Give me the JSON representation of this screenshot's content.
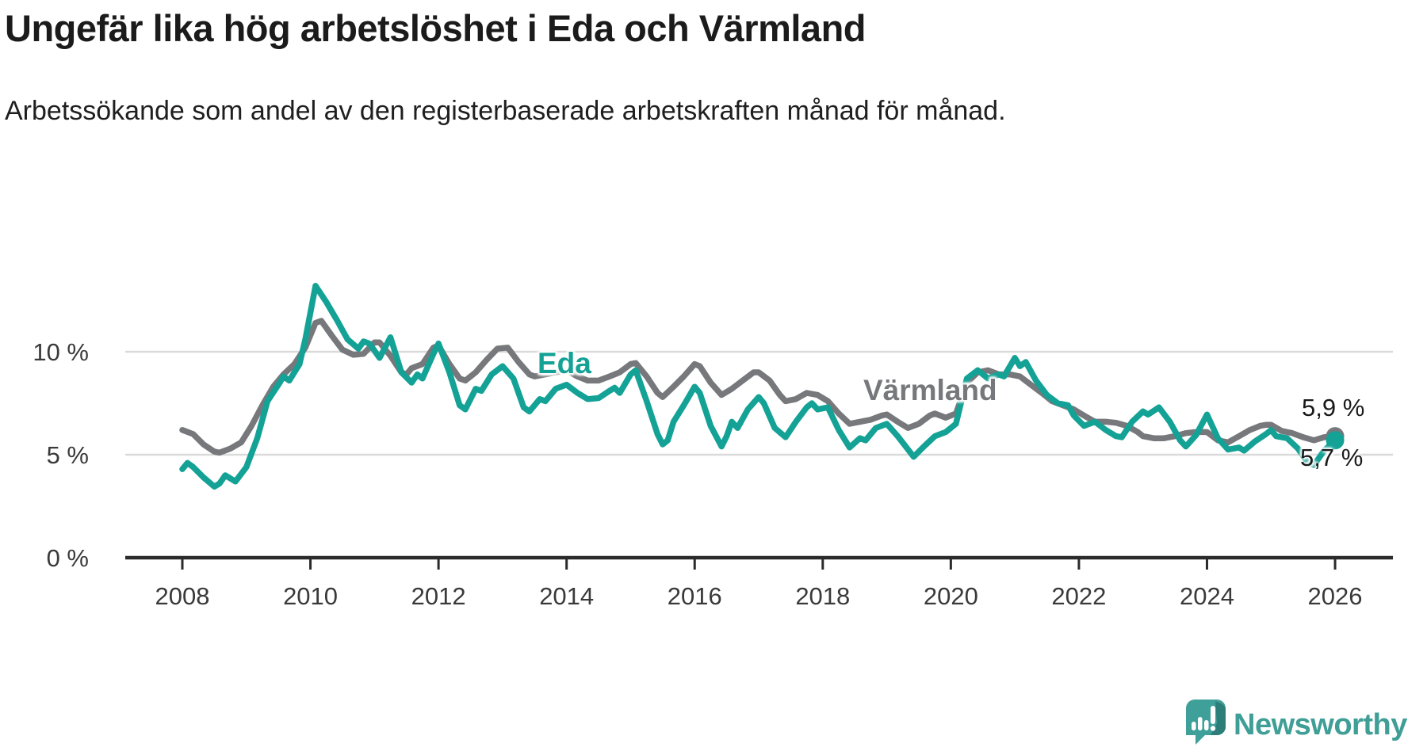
{
  "header": {
    "title": "Ungefär lika hög arbetslöshet i Eda och Värmland",
    "subtitle": "Arbetssökande som andel av den registerbaserade arbetskraften månad för månad."
  },
  "branding": {
    "logo_text": "Newsworthy",
    "logo_color": "#3F9E96",
    "logo_dark_color": "#2B7E79"
  },
  "chart_data": {
    "type": "line",
    "title": "Ungefär lika hög arbetslöshet i Eda och Värmland",
    "xlabel": "",
    "ylabel": "",
    "ylim": [
      0,
      13.8
    ],
    "grid": "horizontal",
    "x_ticks": [
      {
        "value": 2008,
        "label": "2008"
      },
      {
        "value": 2010,
        "label": "2010"
      },
      {
        "value": 2012,
        "label": "2012"
      },
      {
        "value": 2014,
        "label": "2014"
      },
      {
        "value": 2016,
        "label": "2016"
      },
      {
        "value": 2018,
        "label": "2018"
      },
      {
        "value": 2020,
        "label": "2020"
      },
      {
        "value": 2022,
        "label": "2022"
      },
      {
        "value": 2024,
        "label": "2024"
      },
      {
        "value": 2026,
        "label": "2026"
      }
    ],
    "y_ticks": [
      {
        "value": 0,
        "label": "0 %"
      },
      {
        "value": 5,
        "label": "5 %"
      },
      {
        "value": 10,
        "label": "10 %"
      }
    ],
    "colors": {
      "axis": "#2b2b2b",
      "gridline": "#dadada",
      "tick_text": "#3a3a3a"
    },
    "series": [
      {
        "name": "Värmland",
        "color": "#77787c",
        "end_label": "5,9 %",
        "end_value": 5.9,
        "points": [
          [
            2008.0,
            6.2
          ],
          [
            2008.17,
            6.0
          ],
          [
            2008.33,
            5.5
          ],
          [
            2008.5,
            5.15
          ],
          [
            2008.58,
            5.1
          ],
          [
            2008.75,
            5.3
          ],
          [
            2008.92,
            5.6
          ],
          [
            2009.08,
            6.4
          ],
          [
            2009.25,
            7.4
          ],
          [
            2009.42,
            8.3
          ],
          [
            2009.58,
            8.9
          ],
          [
            2009.75,
            9.4
          ],
          [
            2009.92,
            10.2
          ],
          [
            2010.08,
            11.4
          ],
          [
            2010.17,
            11.5
          ],
          [
            2010.33,
            10.8
          ],
          [
            2010.5,
            10.1
          ],
          [
            2010.67,
            9.85
          ],
          [
            2010.83,
            9.9
          ],
          [
            2011.0,
            10.45
          ],
          [
            2011.08,
            10.45
          ],
          [
            2011.25,
            9.8
          ],
          [
            2011.42,
            9.0
          ],
          [
            2011.5,
            8.9
          ],
          [
            2011.58,
            9.2
          ],
          [
            2011.75,
            9.4
          ],
          [
            2011.92,
            10.2
          ],
          [
            2012.0,
            10.3
          ],
          [
            2012.17,
            9.4
          ],
          [
            2012.33,
            8.7
          ],
          [
            2012.42,
            8.6
          ],
          [
            2012.58,
            9.0
          ],
          [
            2012.75,
            9.6
          ],
          [
            2012.92,
            10.15
          ],
          [
            2013.08,
            10.2
          ],
          [
            2013.25,
            9.5
          ],
          [
            2013.42,
            8.9
          ],
          [
            2013.5,
            8.8
          ],
          [
            2013.67,
            8.9
          ],
          [
            2013.83,
            9.0
          ],
          [
            2014.0,
            9.1
          ],
          [
            2014.17,
            8.8
          ],
          [
            2014.33,
            8.6
          ],
          [
            2014.5,
            8.6
          ],
          [
            2014.67,
            8.8
          ],
          [
            2014.83,
            9.0
          ],
          [
            2015.0,
            9.4
          ],
          [
            2015.08,
            9.45
          ],
          [
            2015.25,
            8.8
          ],
          [
            2015.42,
            8.0
          ],
          [
            2015.5,
            7.8
          ],
          [
            2015.67,
            8.3
          ],
          [
            2015.83,
            8.8
          ],
          [
            2016.0,
            9.4
          ],
          [
            2016.08,
            9.3
          ],
          [
            2016.25,
            8.5
          ],
          [
            2016.42,
            7.9
          ],
          [
            2016.58,
            8.2
          ],
          [
            2016.75,
            8.6
          ],
          [
            2016.92,
            9.0
          ],
          [
            2017.0,
            9.0
          ],
          [
            2017.17,
            8.6
          ],
          [
            2017.33,
            7.9
          ],
          [
            2017.42,
            7.6
          ],
          [
            2017.58,
            7.7
          ],
          [
            2017.75,
            8.0
          ],
          [
            2017.92,
            7.9
          ],
          [
            2018.08,
            7.6
          ],
          [
            2018.25,
            7.0
          ],
          [
            2018.42,
            6.5
          ],
          [
            2018.58,
            6.6
          ],
          [
            2018.75,
            6.7
          ],
          [
            2018.92,
            6.9
          ],
          [
            2019.0,
            6.95
          ],
          [
            2019.17,
            6.6
          ],
          [
            2019.33,
            6.3
          ],
          [
            2019.5,
            6.5
          ],
          [
            2019.67,
            6.9
          ],
          [
            2019.75,
            7.0
          ],
          [
            2019.92,
            6.8
          ],
          [
            2020.08,
            7.0
          ],
          [
            2020.25,
            8.5
          ],
          [
            2020.42,
            9.0
          ],
          [
            2020.58,
            9.1
          ],
          [
            2020.75,
            8.9
          ],
          [
            2020.92,
            8.9
          ],
          [
            2021.08,
            8.8
          ],
          [
            2021.25,
            8.4
          ],
          [
            2021.42,
            8.0
          ],
          [
            2021.58,
            7.6
          ],
          [
            2021.75,
            7.4
          ],
          [
            2021.92,
            7.2
          ],
          [
            2022.08,
            6.9
          ],
          [
            2022.25,
            6.6
          ],
          [
            2022.42,
            6.6
          ],
          [
            2022.58,
            6.55
          ],
          [
            2022.75,
            6.4
          ],
          [
            2022.92,
            6.1
          ],
          [
            2023.0,
            5.9
          ],
          [
            2023.17,
            5.8
          ],
          [
            2023.33,
            5.8
          ],
          [
            2023.5,
            5.9
          ],
          [
            2023.67,
            6.05
          ],
          [
            2023.83,
            6.1
          ],
          [
            2024.0,
            6.1
          ],
          [
            2024.17,
            5.7
          ],
          [
            2024.33,
            5.6
          ],
          [
            2024.5,
            5.9
          ],
          [
            2024.67,
            6.2
          ],
          [
            2024.83,
            6.4
          ],
          [
            2024.92,
            6.45
          ],
          [
            2025.0,
            6.45
          ],
          [
            2025.17,
            6.15
          ],
          [
            2025.33,
            6.05
          ],
          [
            2025.5,
            5.85
          ],
          [
            2025.67,
            5.7
          ],
          [
            2025.83,
            5.85
          ],
          [
            2026.0,
            5.9
          ]
        ]
      },
      {
        "name": "Eda",
        "color": "#13A295",
        "end_label": "5,7 %",
        "end_value": 5.7,
        "points": [
          [
            2008.0,
            4.3
          ],
          [
            2008.08,
            4.6
          ],
          [
            2008.17,
            4.4
          ],
          [
            2008.33,
            3.9
          ],
          [
            2008.5,
            3.45
          ],
          [
            2008.58,
            3.6
          ],
          [
            2008.67,
            4.0
          ],
          [
            2008.83,
            3.7
          ],
          [
            2009.0,
            4.4
          ],
          [
            2009.17,
            5.8
          ],
          [
            2009.33,
            7.6
          ],
          [
            2009.5,
            8.4
          ],
          [
            2009.58,
            8.8
          ],
          [
            2009.67,
            8.6
          ],
          [
            2009.83,
            9.4
          ],
          [
            2009.92,
            10.6
          ],
          [
            2010.08,
            13.2
          ],
          [
            2010.25,
            12.4
          ],
          [
            2010.42,
            11.5
          ],
          [
            2010.58,
            10.6
          ],
          [
            2010.75,
            10.15
          ],
          [
            2010.83,
            10.5
          ],
          [
            2010.92,
            10.4
          ],
          [
            2011.08,
            9.7
          ],
          [
            2011.25,
            10.7
          ],
          [
            2011.42,
            9.0
          ],
          [
            2011.58,
            8.5
          ],
          [
            2011.67,
            8.9
          ],
          [
            2011.75,
            8.7
          ],
          [
            2011.92,
            9.9
          ],
          [
            2012.0,
            10.4
          ],
          [
            2012.17,
            9.0
          ],
          [
            2012.33,
            7.4
          ],
          [
            2012.42,
            7.2
          ],
          [
            2012.58,
            8.2
          ],
          [
            2012.67,
            8.1
          ],
          [
            2012.83,
            8.9
          ],
          [
            2013.0,
            9.3
          ],
          [
            2013.17,
            8.7
          ],
          [
            2013.33,
            7.3
          ],
          [
            2013.42,
            7.1
          ],
          [
            2013.58,
            7.7
          ],
          [
            2013.67,
            7.6
          ],
          [
            2013.83,
            8.2
          ],
          [
            2014.0,
            8.4
          ],
          [
            2014.17,
            8.0
          ],
          [
            2014.33,
            7.7
          ],
          [
            2014.5,
            7.75
          ],
          [
            2014.67,
            8.1
          ],
          [
            2014.75,
            8.25
          ],
          [
            2014.83,
            8.0
          ],
          [
            2015.0,
            8.9
          ],
          [
            2015.08,
            9.1
          ],
          [
            2015.25,
            7.6
          ],
          [
            2015.42,
            6.0
          ],
          [
            2015.5,
            5.5
          ],
          [
            2015.58,
            5.7
          ],
          [
            2015.67,
            6.6
          ],
          [
            2015.83,
            7.4
          ],
          [
            2016.0,
            8.3
          ],
          [
            2016.08,
            8.0
          ],
          [
            2016.25,
            6.4
          ],
          [
            2016.42,
            5.4
          ],
          [
            2016.5,
            5.9
          ],
          [
            2016.58,
            6.6
          ],
          [
            2016.67,
            6.3
          ],
          [
            2016.83,
            7.2
          ],
          [
            2017.0,
            7.8
          ],
          [
            2017.08,
            7.5
          ],
          [
            2017.25,
            6.3
          ],
          [
            2017.42,
            5.85
          ],
          [
            2017.58,
            6.6
          ],
          [
            2017.75,
            7.3
          ],
          [
            2017.83,
            7.5
          ],
          [
            2017.92,
            7.2
          ],
          [
            2018.08,
            7.3
          ],
          [
            2018.25,
            6.2
          ],
          [
            2018.42,
            5.35
          ],
          [
            2018.58,
            5.8
          ],
          [
            2018.67,
            5.7
          ],
          [
            2018.83,
            6.3
          ],
          [
            2019.0,
            6.5
          ],
          [
            2019.17,
            5.9
          ],
          [
            2019.42,
            4.9
          ],
          [
            2019.58,
            5.4
          ],
          [
            2019.75,
            5.9
          ],
          [
            2019.92,
            6.1
          ],
          [
            2020.08,
            6.5
          ],
          [
            2020.25,
            8.7
          ],
          [
            2020.42,
            9.1
          ],
          [
            2020.5,
            8.9
          ],
          [
            2020.58,
            8.7
          ],
          [
            2020.75,
            8.9
          ],
          [
            2020.83,
            8.8
          ],
          [
            2021.0,
            9.7
          ],
          [
            2021.08,
            9.3
          ],
          [
            2021.17,
            9.5
          ],
          [
            2021.33,
            8.6
          ],
          [
            2021.5,
            7.9
          ],
          [
            2021.67,
            7.5
          ],
          [
            2021.83,
            7.4
          ],
          [
            2021.92,
            6.9
          ],
          [
            2022.08,
            6.4
          ],
          [
            2022.25,
            6.6
          ],
          [
            2022.42,
            6.2
          ],
          [
            2022.58,
            5.9
          ],
          [
            2022.67,
            5.85
          ],
          [
            2022.83,
            6.6
          ],
          [
            2023.0,
            7.1
          ],
          [
            2023.08,
            6.95
          ],
          [
            2023.25,
            7.3
          ],
          [
            2023.42,
            6.6
          ],
          [
            2023.58,
            5.7
          ],
          [
            2023.67,
            5.4
          ],
          [
            2023.83,
            5.95
          ],
          [
            2024.0,
            6.95
          ],
          [
            2024.17,
            5.8
          ],
          [
            2024.33,
            5.25
          ],
          [
            2024.5,
            5.35
          ],
          [
            2024.58,
            5.2
          ],
          [
            2024.75,
            5.65
          ],
          [
            2024.92,
            6.0
          ],
          [
            2025.0,
            6.2
          ],
          [
            2025.08,
            5.9
          ],
          [
            2025.25,
            5.8
          ],
          [
            2025.42,
            5.3
          ],
          [
            2025.58,
            4.6
          ],
          [
            2025.67,
            4.5
          ],
          [
            2025.83,
            5.2
          ],
          [
            2026.0,
            5.7
          ]
        ]
      }
    ]
  }
}
